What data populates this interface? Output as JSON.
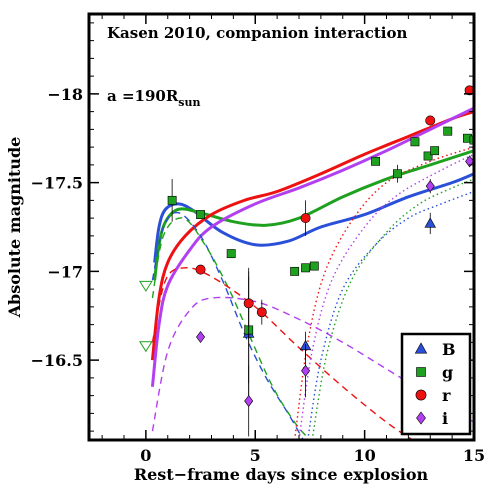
{
  "chart_data": {
    "type": "scatter",
    "title": "Kasen 2010, companion interaction",
    "annotation": {
      "text": "a =190R",
      "subscript": "sun"
    },
    "xlabel": "Rest−frame days since explosion",
    "ylabel": "Absolute magnitude",
    "xlim": [
      -2.6,
      15
    ],
    "ylim": [
      -16.05,
      -18.45
    ],
    "y_inverted": true,
    "x_ticks": [
      0,
      5,
      10,
      15
    ],
    "x_tick_labels": [
      "0",
      "5",
      "10",
      "15"
    ],
    "y_ticks": [
      -16.5,
      -17,
      -17.5,
      -18
    ],
    "y_tick_labels": [
      "−16.5",
      "−17",
      "−17.5",
      "−18"
    ],
    "legend": {
      "position": "bottom-right",
      "entries": [
        {
          "label": "B",
          "color": "#2a4fd8",
          "marker": "triangle"
        },
        {
          "label": "g",
          "color": "#1ea11e",
          "marker": "square"
        },
        {
          "label": "r",
          "color": "#ee1111",
          "marker": "circle"
        },
        {
          "label": "i",
          "color": "#b23ff0",
          "marker": "diamond"
        }
      ]
    },
    "observations": [
      {
        "band": "B",
        "points": [
          {
            "x": 4.7,
            "y": -16.65,
            "err": 0.35
          },
          {
            "x": 7.3,
            "y": -16.58,
            "err": 0.08
          },
          {
            "x": 13.0,
            "y": -17.27,
            "err": 0.06
          }
        ]
      },
      {
        "band": "g",
        "points": [
          {
            "x": 1.2,
            "y": -17.4,
            "err": 0.12
          },
          {
            "x": 2.5,
            "y": -17.32,
            "err": 0.0
          },
          {
            "x": 3.9,
            "y": -17.1,
            "err": 0.0
          },
          {
            "x": 4.7,
            "y": -16.67,
            "err": 0.3
          },
          {
            "x": 6.8,
            "y": -17.0,
            "err": 0.0
          },
          {
            "x": 7.3,
            "y": -17.02,
            "err": 0.0
          },
          {
            "x": 7.7,
            "y": -17.03,
            "err": 0.0
          },
          {
            "x": 10.5,
            "y": -17.62,
            "err": 0.0
          },
          {
            "x": 11.5,
            "y": -17.55,
            "err": 0.05
          },
          {
            "x": 12.3,
            "y": -17.73,
            "err": 0.0
          },
          {
            "x": 12.9,
            "y": -17.65,
            "err": 0.0
          },
          {
            "x": 13.2,
            "y": -17.68,
            "err": 0.0
          },
          {
            "x": 13.8,
            "y": -17.79,
            "err": 0.0
          },
          {
            "x": 14.7,
            "y": -17.75,
            "err": 0.0
          },
          {
            "x": 15.0,
            "y": -17.74,
            "err": 0.0
          }
        ]
      },
      {
        "band": "r",
        "points": [
          {
            "x": 2.5,
            "y": -17.01,
            "err": 0.0
          },
          {
            "x": 4.7,
            "y": -16.82,
            "err": 0.2
          },
          {
            "x": 5.3,
            "y": -16.77,
            "err": 0.07
          },
          {
            "x": 7.3,
            "y": -17.3,
            "err": 0.1
          },
          {
            "x": 13.0,
            "y": -17.85,
            "err": 0.0
          },
          {
            "x": 14.8,
            "y": -18.02,
            "err": 0.0
          }
        ]
      },
      {
        "band": "i",
        "points": [
          {
            "x": 2.5,
            "y": -16.63,
            "err": 0.0
          },
          {
            "x": 4.7,
            "y": -16.27,
            "err": 0.2
          },
          {
            "x": 7.3,
            "y": -16.44,
            "err": 0.15
          },
          {
            "x": 13.0,
            "y": -17.48,
            "err": 0.04
          },
          {
            "x": 14.8,
            "y": -17.62,
            "err": 0.0
          }
        ]
      }
    ],
    "upper_limits": [
      {
        "x": 0.0,
        "y": -16.92,
        "color": "#1ea11e"
      },
      {
        "x": 0.0,
        "y": -16.58,
        "color": "#1ea11e"
      }
    ],
    "model_curves": [
      {
        "band": "B",
        "color": "#2a4fd8",
        "style": "solid",
        "points": [
          [
            0.4,
            -17.05
          ],
          [
            0.6,
            -17.25
          ],
          [
            0.9,
            -17.35
          ],
          [
            1.5,
            -17.38
          ],
          [
            2.2,
            -17.34
          ],
          [
            3.5,
            -17.22
          ],
          [
            5,
            -17.15
          ],
          [
            6.5,
            -17.17
          ],
          [
            8,
            -17.25
          ],
          [
            10,
            -17.32
          ],
          [
            12,
            -17.42
          ],
          [
            14,
            -17.5
          ],
          [
            15,
            -17.55
          ]
        ]
      },
      {
        "band": "g",
        "color": "#1ea11e",
        "style": "solid",
        "points": [
          [
            0.4,
            -16.95
          ],
          [
            0.6,
            -17.15
          ],
          [
            0.9,
            -17.28
          ],
          [
            1.5,
            -17.35
          ],
          [
            2.5,
            -17.33
          ],
          [
            4,
            -17.28
          ],
          [
            5.5,
            -17.26
          ],
          [
            7,
            -17.3
          ],
          [
            9,
            -17.42
          ],
          [
            11,
            -17.52
          ],
          [
            13,
            -17.6
          ],
          [
            15,
            -17.68
          ]
        ]
      },
      {
        "band": "r",
        "color": "#ee1111",
        "style": "solid",
        "points": [
          [
            0.3,
            -16.5
          ],
          [
            0.6,
            -16.85
          ],
          [
            1,
            -17.05
          ],
          [
            1.8,
            -17.2
          ],
          [
            3,
            -17.32
          ],
          [
            4.5,
            -17.4
          ],
          [
            6,
            -17.45
          ],
          [
            8,
            -17.55
          ],
          [
            10,
            -17.66
          ],
          [
            12,
            -17.76
          ],
          [
            14,
            -17.86
          ],
          [
            15,
            -17.9
          ]
        ]
      },
      {
        "band": "i",
        "color": "#b23ff0",
        "style": "solid",
        "points": [
          [
            0.3,
            -16.35
          ],
          [
            0.6,
            -16.7
          ],
          [
            1,
            -16.92
          ],
          [
            2,
            -17.12
          ],
          [
            3,
            -17.25
          ],
          [
            5,
            -17.38
          ],
          [
            7,
            -17.47
          ],
          [
            9,
            -17.57
          ],
          [
            11,
            -17.68
          ],
          [
            13,
            -17.8
          ],
          [
            15,
            -17.92
          ]
        ]
      },
      {
        "band": "B",
        "color": "#2a4fd8",
        "style": "dashed",
        "points": [
          [
            0.3,
            -16.95
          ],
          [
            0.8,
            -17.25
          ],
          [
            1.5,
            -17.33
          ],
          [
            2.5,
            -17.2
          ],
          [
            3.5,
            -16.95
          ],
          [
            4.5,
            -16.65
          ],
          [
            5.5,
            -16.4
          ],
          [
            6.5,
            -16.2
          ],
          [
            7.2,
            -16.05
          ]
        ]
      },
      {
        "band": "g",
        "color": "#1ea11e",
        "style": "dashed",
        "points": [
          [
            0.3,
            -16.85
          ],
          [
            0.8,
            -17.2
          ],
          [
            1.7,
            -17.3
          ],
          [
            2.7,
            -17.15
          ],
          [
            3.8,
            -16.9
          ],
          [
            4.8,
            -16.62
          ],
          [
            5.8,
            -16.35
          ],
          [
            6.8,
            -16.15
          ],
          [
            7.5,
            -16.05
          ]
        ]
      },
      {
        "band": "r",
        "color": "#ee1111",
        "style": "dashed",
        "points": [
          [
            0.3,
            -16.6
          ],
          [
            0.9,
            -16.95
          ],
          [
            1.8,
            -17.02
          ],
          [
            3,
            -16.97
          ],
          [
            5,
            -16.8
          ],
          [
            7,
            -16.57
          ],
          [
            9,
            -16.35
          ],
          [
            11,
            -16.15
          ],
          [
            12.2,
            -16.05
          ]
        ]
      },
      {
        "band": "i",
        "color": "#b23ff0",
        "style": "dashed",
        "points": [
          [
            0.3,
            -16.1
          ],
          [
            1,
            -16.55
          ],
          [
            2,
            -16.78
          ],
          [
            3,
            -16.85
          ],
          [
            5,
            -16.83
          ],
          [
            7,
            -16.73
          ],
          [
            9,
            -16.6
          ],
          [
            11,
            -16.45
          ],
          [
            13,
            -16.3
          ],
          [
            15,
            -16.15
          ]
        ]
      },
      {
        "band": "B",
        "color": "#2a4fd8",
        "style": "dotted",
        "points": [
          [
            7.4,
            -16.05
          ],
          [
            8,
            -16.5
          ],
          [
            9,
            -16.9
          ],
          [
            10.5,
            -17.15
          ],
          [
            12,
            -17.3
          ],
          [
            13.5,
            -17.38
          ],
          [
            15,
            -17.45
          ]
        ]
      },
      {
        "band": "g",
        "color": "#1ea11e",
        "style": "dotted",
        "points": [
          [
            7.6,
            -16.05
          ],
          [
            8.3,
            -16.55
          ],
          [
            9.4,
            -16.95
          ],
          [
            11,
            -17.22
          ],
          [
            12.5,
            -17.38
          ],
          [
            14,
            -17.47
          ],
          [
            15,
            -17.52
          ]
        ]
      },
      {
        "band": "r",
        "color": "#ee1111",
        "style": "dotted",
        "points": [
          [
            6.8,
            -16.05
          ],
          [
            7.4,
            -16.6
          ],
          [
            8.2,
            -17.0
          ],
          [
            9.5,
            -17.3
          ],
          [
            11,
            -17.5
          ],
          [
            13,
            -17.62
          ],
          [
            15,
            -17.7
          ]
        ]
      },
      {
        "band": "i",
        "color": "#b23ff0",
        "style": "dotted",
        "points": [
          [
            7.0,
            -16.05
          ],
          [
            7.6,
            -16.55
          ],
          [
            8.5,
            -16.95
          ],
          [
            10,
            -17.25
          ],
          [
            11.5,
            -17.43
          ],
          [
            13.5,
            -17.57
          ],
          [
            15,
            -17.66
          ]
        ]
      }
    ]
  }
}
